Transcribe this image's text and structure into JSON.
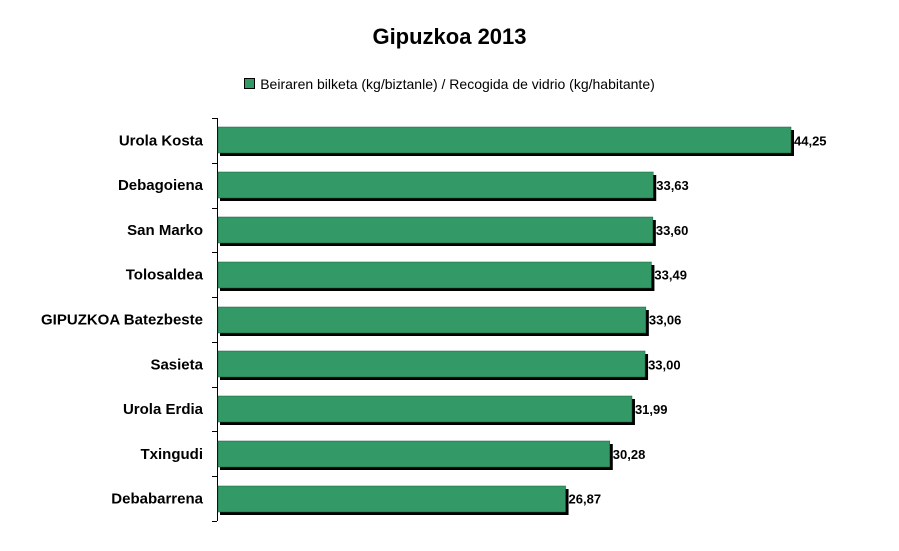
{
  "chart_data": {
    "type": "bar",
    "orientation": "horizontal",
    "title": "Gipuzkoa 2013",
    "categories": [
      "Urola Kosta",
      "Debagoiena",
      "San Marko",
      "Tolosaldea",
      "GIPUZKOA Batezbeste",
      "Sasieta",
      "Urola Erdia",
      "Txingudi",
      "Debabarrena"
    ],
    "series": [
      {
        "name": "Beiraren bilketa (kg/biztanle) / Recogida de vidrio (kg/habitante)",
        "values": [
          44.25,
          33.63,
          33.6,
          33.49,
          33.06,
          33.0,
          31.99,
          30.28,
          26.87
        ],
        "labels": [
          "44,25",
          "33,63",
          "33,60",
          "33,49",
          "33,06",
          "33,00",
          "31,99",
          "30,28",
          "26,87"
        ]
      }
    ],
    "xlim": [
      0,
      50
    ],
    "grid": false,
    "legend_position": "top",
    "colors": {
      "bar": "#339966",
      "bar_shadow": "#000000",
      "axis": "#000000"
    }
  }
}
